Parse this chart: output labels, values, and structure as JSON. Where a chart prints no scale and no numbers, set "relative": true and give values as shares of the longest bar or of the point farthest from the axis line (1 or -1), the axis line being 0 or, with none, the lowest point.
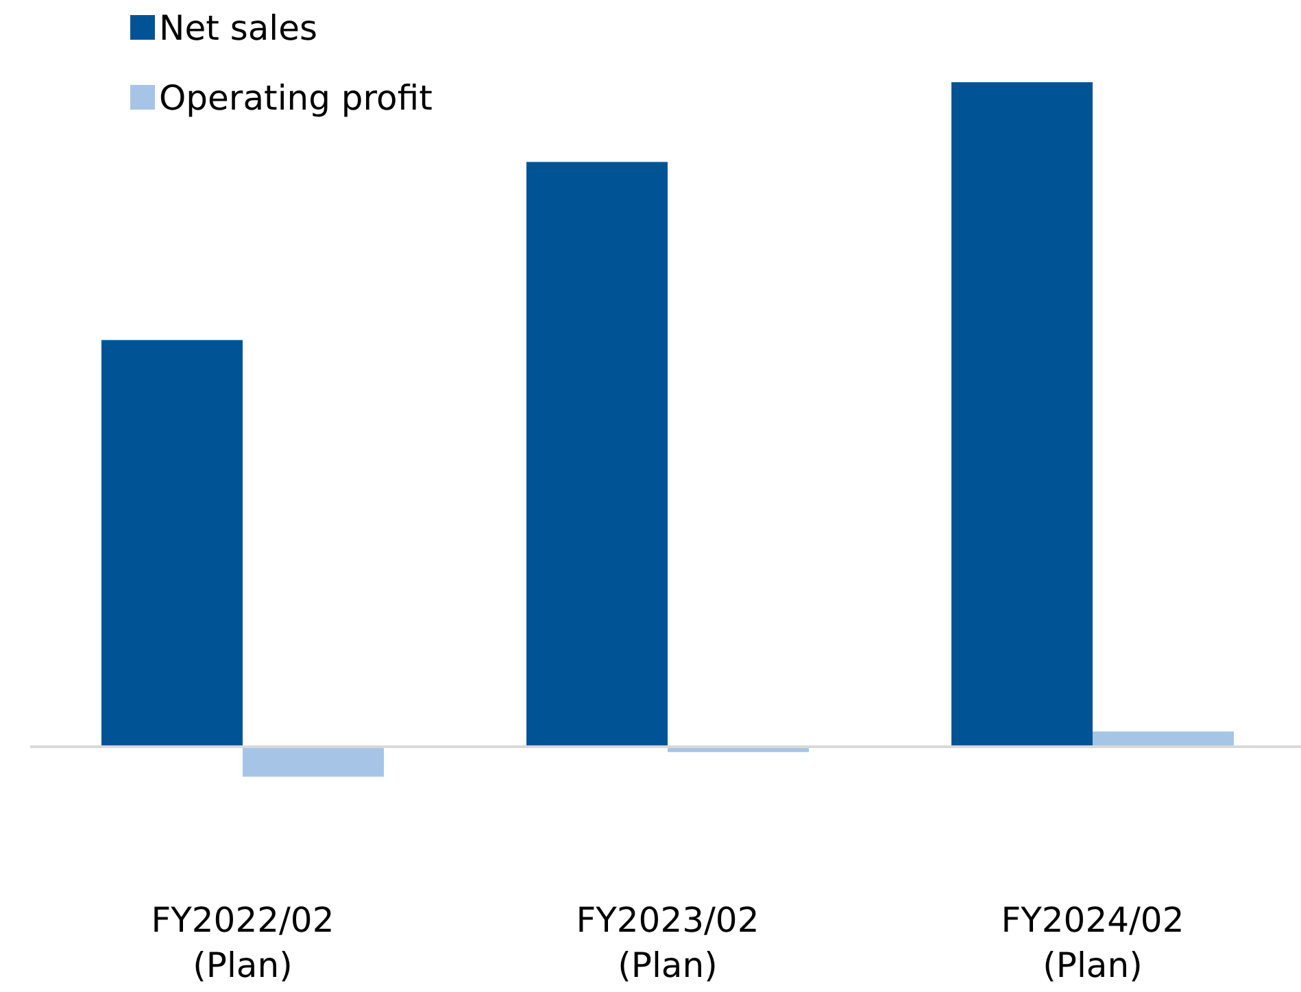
{
  "chart_data": {
    "type": "bar",
    "relative": true,
    "categories": [
      "FY2022/02 (Plan)",
      "FY2023/02 (Plan)",
      "FY2024/02 (Plan)"
    ],
    "series": [
      {
        "name": "Net sales",
        "color": "#005496",
        "values": [
          0.612,
          0.88,
          1
        ]
      },
      {
        "name": "Operating profit",
        "color": "#a6c5e6",
        "values": [
          -0.045,
          -0.008,
          0.023
        ]
      }
    ],
    "legend": "top left"
  }
}
